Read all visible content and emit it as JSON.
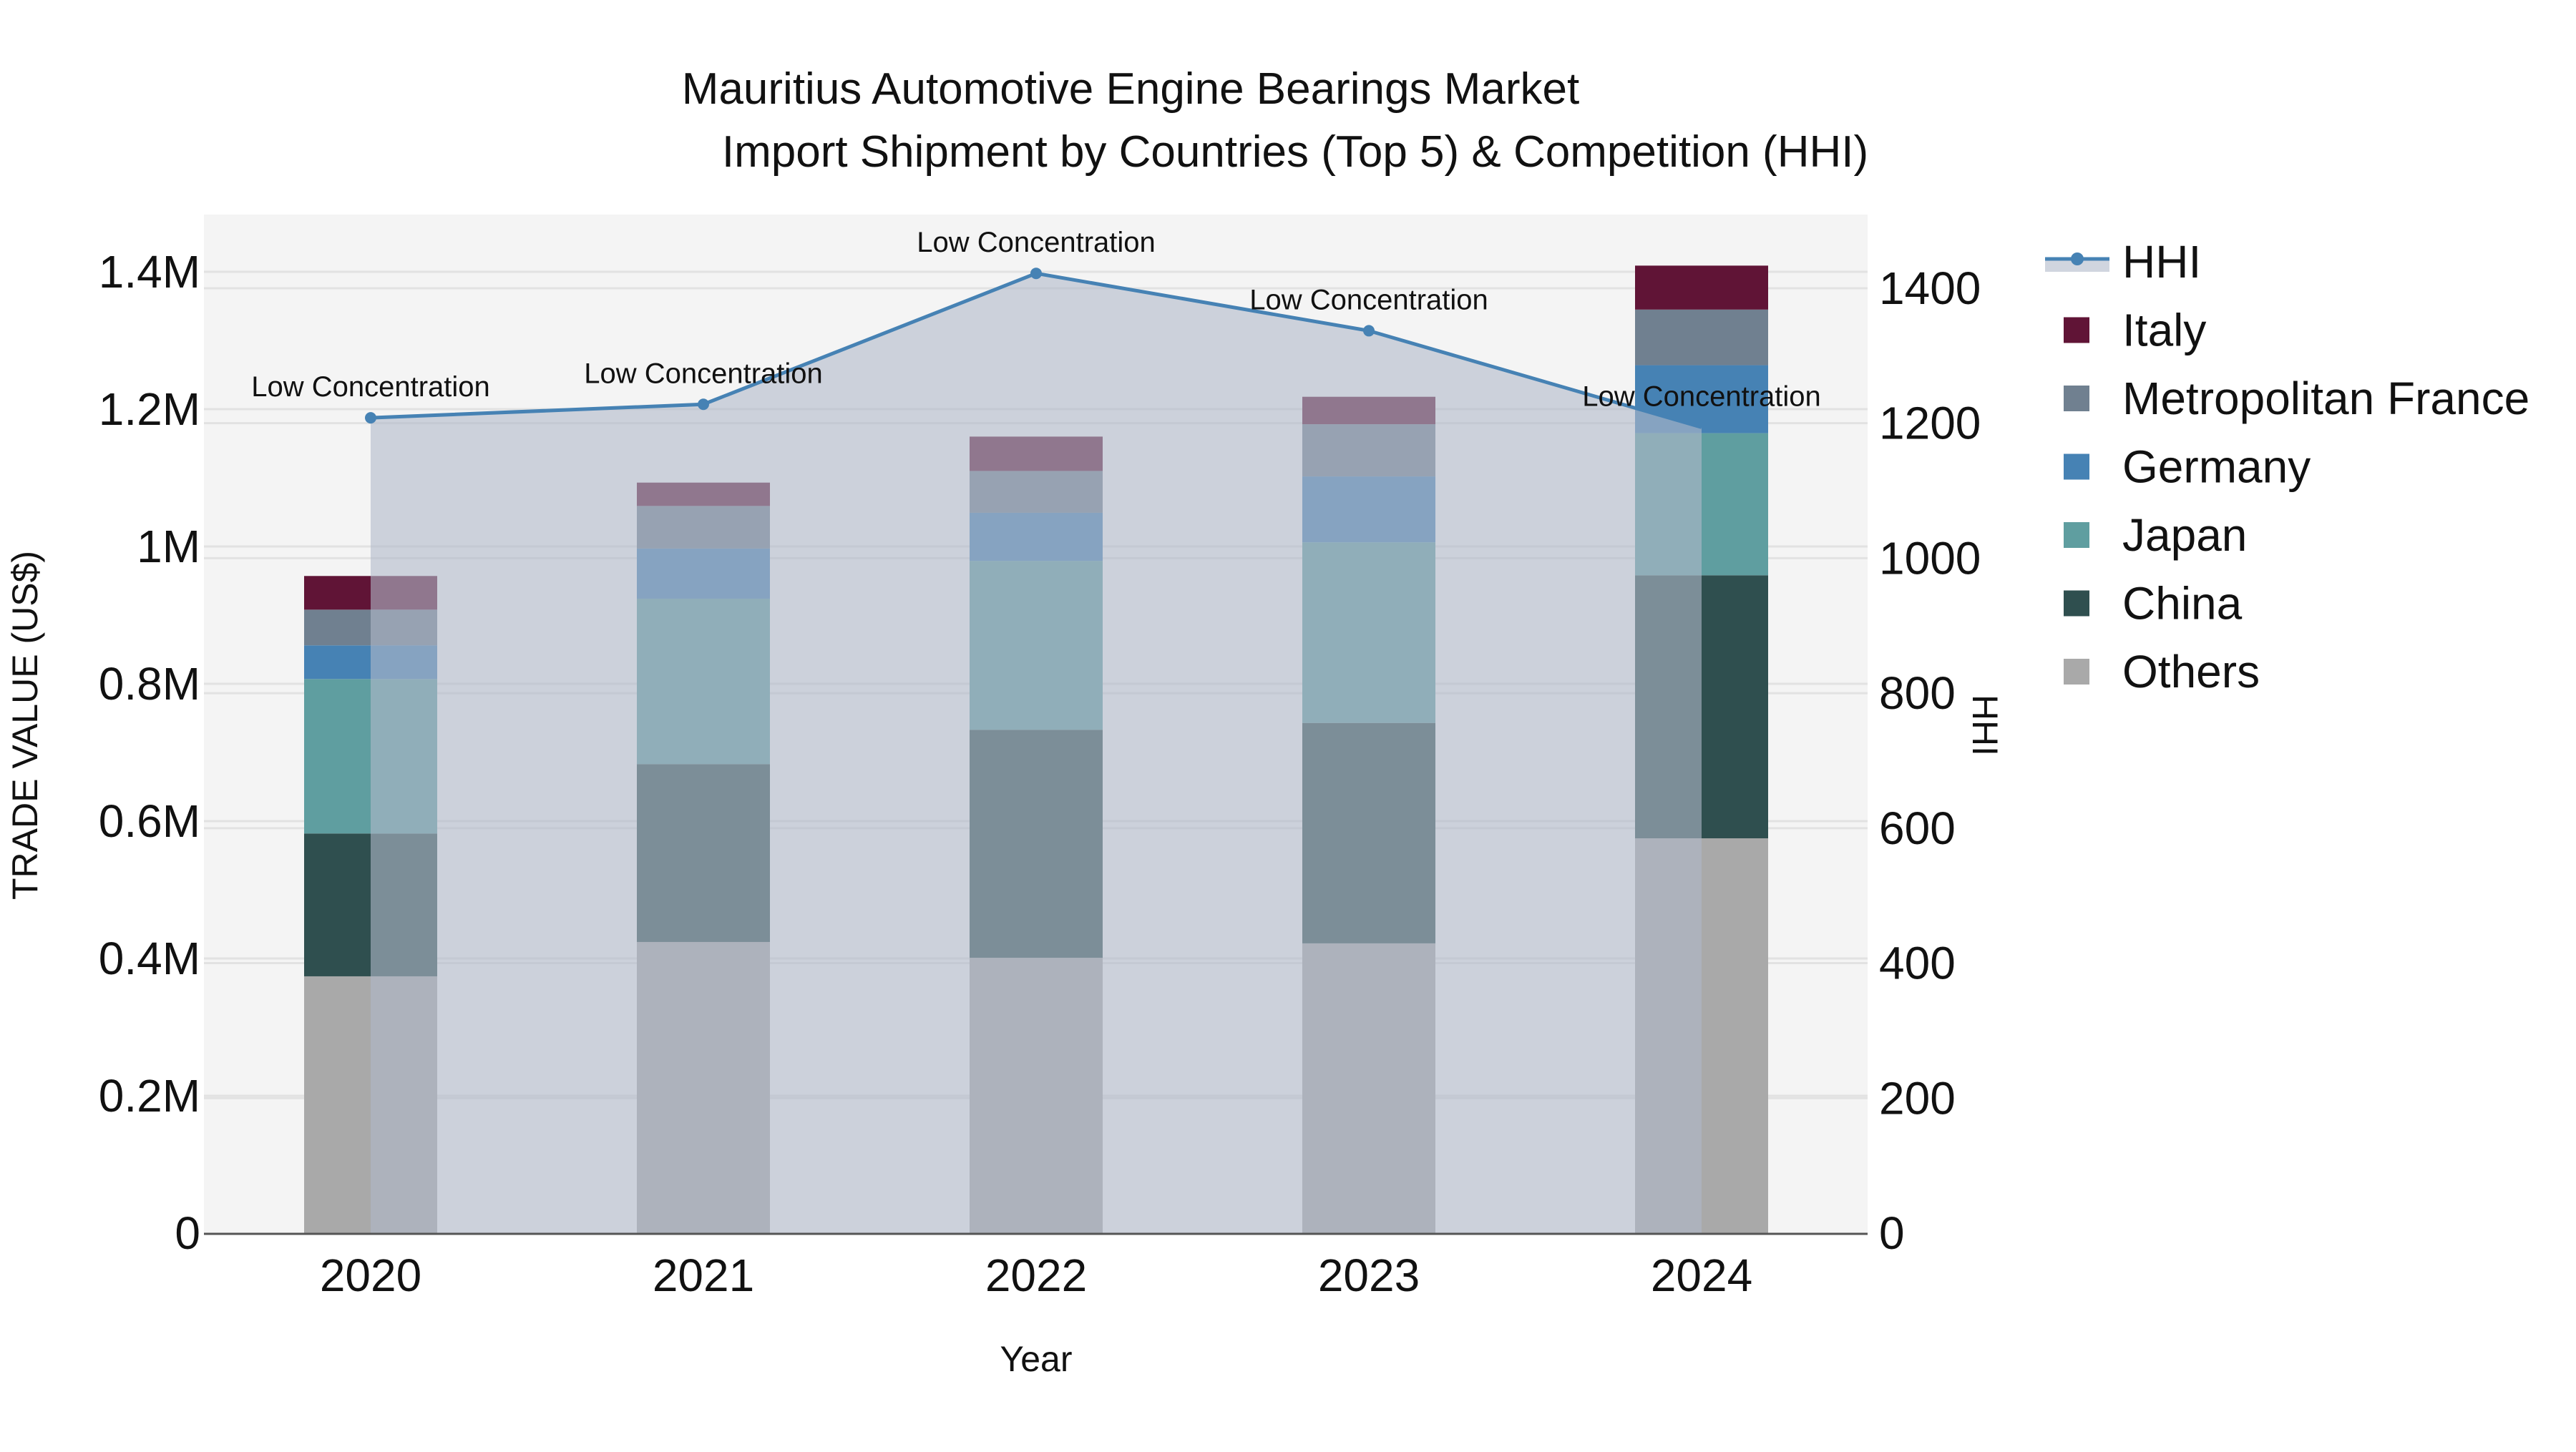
{
  "chart_data": {
    "type": "bar",
    "subtype": "stacked bar with line + area overlay on secondary axis",
    "title": "Mauritius Automotive Engine Bearings Market",
    "subtitle": "Import Shipment by Countries (Top 5) & Competition (HHI)",
    "xlabel": "Year",
    "ylabel": "TRADE VALUE (US$)",
    "y2label": "HHI",
    "categories": [
      "2020",
      "2021",
      "2022",
      "2023",
      "2024"
    ],
    "ylim": [
      0,
      1480000
    ],
    "y2lim": [
      0,
      1510
    ],
    "yticks": [
      {
        "value": 0,
        "label": "0"
      },
      {
        "value": 200000,
        "label": "0.2M"
      },
      {
        "value": 400000,
        "label": "0.4M"
      },
      {
        "value": 600000,
        "label": "0.6M"
      },
      {
        "value": 800000,
        "label": "0.8M"
      },
      {
        "value": 1000000,
        "label": "1M"
      },
      {
        "value": 1200000,
        "label": "1.2M"
      },
      {
        "value": 1400000,
        "label": "1.4M"
      }
    ],
    "y2ticks": [
      {
        "value": 0,
        "label": "0"
      },
      {
        "value": 200,
        "label": "200"
      },
      {
        "value": 400,
        "label": "400"
      },
      {
        "value": 600,
        "label": "600"
      },
      {
        "value": 800,
        "label": "800"
      },
      {
        "value": 1000,
        "label": "1000"
      },
      {
        "value": 1200,
        "label": "1200"
      },
      {
        "value": 1400,
        "label": "1400"
      }
    ],
    "grid": true,
    "legend_position": "right",
    "series": [
      {
        "name": "Others",
        "color": "#A9A9A9",
        "values": [
          374000,
          424000,
          401000,
          422000,
          575000
        ]
      },
      {
        "name": "China",
        "color": "#2F4F4F",
        "values": [
          208000,
          259000,
          332000,
          321000,
          383000
        ]
      },
      {
        "name": "Japan",
        "color": "#5F9EA0",
        "values": [
          225000,
          241000,
          246000,
          263000,
          207000
        ]
      },
      {
        "name": "Germany",
        "color": "#4682B4",
        "values": [
          49000,
          73000,
          70000,
          96000,
          99000
        ]
      },
      {
        "name": "Metropolitan France",
        "color": "#708090",
        "values": [
          52000,
          62000,
          61000,
          76000,
          81000
        ]
      },
      {
        "name": "Italy",
        "color": "#601436",
        "values": [
          49000,
          34000,
          50000,
          40000,
          64000
        ]
      }
    ],
    "line_series": {
      "name": "HHI",
      "axis": "y2",
      "color": "#4682B4",
      "fill_color": "rgba(176,185,201,0.6)",
      "values": [
        1208,
        1228,
        1422,
        1337,
        1194
      ],
      "annotations": [
        "Low Concentration",
        "Low Concentration",
        "Low Concentration",
        "Low Concentration",
        "Low Concentration"
      ]
    }
  },
  "legend": {
    "items": [
      {
        "label": "HHI",
        "type": "line",
        "color": "#4682B4"
      },
      {
        "label": "Italy",
        "type": "square",
        "color": "#601436"
      },
      {
        "label": "Metropolitan France",
        "type": "square",
        "color": "#708090"
      },
      {
        "label": "Germany",
        "type": "square",
        "color": "#4682B4"
      },
      {
        "label": "Japan",
        "type": "square",
        "color": "#5F9EA0"
      },
      {
        "label": "China",
        "type": "square",
        "color": "#2F4F4F"
      },
      {
        "label": "Others",
        "type": "square",
        "color": "#A9A9A9"
      }
    ]
  },
  "colors": {
    "plot_bg": "#F4F4F4",
    "grid": "#E2E2E2",
    "axis_line": "#555555"
  }
}
